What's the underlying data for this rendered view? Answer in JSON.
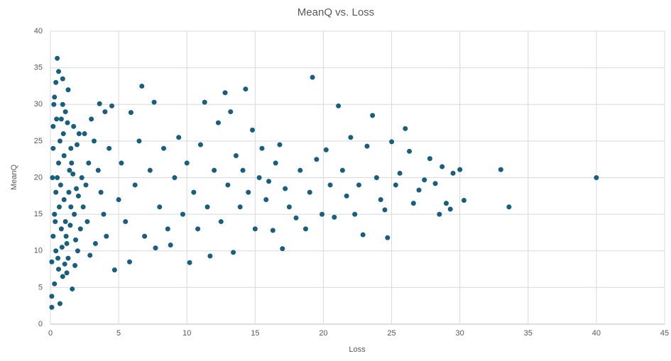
{
  "chart_data": {
    "type": "scatter",
    "title": "MeanQ vs. Loss",
    "x_label": "Loss",
    "y_label": "MeanQ",
    "xlim": [
      0,
      45
    ],
    "ylim": [
      0,
      40
    ],
    "xticks": [
      0,
      5,
      10,
      15,
      20,
      25,
      30,
      35,
      40,
      45
    ],
    "yticks": [
      0,
      5,
      10,
      15,
      20,
      25,
      30,
      35,
      40
    ],
    "grid": true,
    "color": "#175e7f",
    "x": [
      0.1,
      0.2,
      0.3,
      0.4,
      0.5,
      0.6,
      0.7,
      0.8,
      0.9,
      1.0,
      1.1,
      1.2,
      1.3,
      1.4,
      1.5,
      0.2,
      0.3,
      0.4,
      0.6,
      0.5,
      0.1,
      0.1,
      0.7,
      0.3,
      0.9,
      1.6,
      1.2,
      1.8,
      2.0,
      2.2,
      2.4,
      2.6,
      2.8,
      2.5,
      3.0,
      3.2,
      3.5,
      3.7,
      3.9,
      4.1,
      4.3,
      4.5,
      4.0,
      3.6,
      3.3,
      2.9,
      0.4,
      0.8,
      1.0,
      1.7,
      1.9,
      1.3,
      0.9,
      1.1,
      2.1,
      2.3,
      2.7,
      1.5,
      0.6,
      0.2,
      0.15,
      0.35,
      0.55,
      0.75,
      0.95,
      1.15,
      1.35,
      1.55,
      1.75,
      1.95,
      0.45,
      0.25,
      0.65,
      0.85,
      1.05,
      1.25,
      1.45,
      1.65,
      1.85,
      2.05,
      4.7,
      5.0,
      5.2,
      5.5,
      5.8,
      5.9,
      6.2,
      6.5,
      6.7,
      6.9,
      7.3,
      7.6,
      7.7,
      8.0,
      8.3,
      8.6,
      8.8,
      9.1,
      9.4,
      9.7,
      10.0,
      10.2,
      10.5,
      10.8,
      11.0,
      11.3,
      11.5,
      11.7,
      12.0,
      12.3,
      12.5,
      12.8,
      13.0,
      13.2,
      13.4,
      13.6,
      13.9,
      14.1,
      14.3,
      14.5,
      14.8,
      15.0,
      15.3,
      15.5,
      15.8,
      16.0,
      16.3,
      16.5,
      16.8,
      17.0,
      17.2,
      17.5,
      18.0,
      18.3,
      18.7,
      19.0,
      19.2,
      19.5,
      19.9,
      20.2,
      20.5,
      20.8,
      21.1,
      21.4,
      21.7,
      22.0,
      22.3,
      22.6,
      22.9,
      23.2,
      23.6,
      23.9,
      24.2,
      24.5,
      24.7,
      25.0,
      25.3,
      25.6,
      26.0,
      26.3,
      26.6,
      27.0,
      27.4,
      27.8,
      28.2,
      28.5,
      28.7,
      29.0,
      29.3,
      29.5,
      30.0,
      30.3,
      33.0,
      33.6,
      40.0
    ],
    "y": [
      8.5,
      12,
      15,
      18,
      20,
      22,
      25,
      28,
      30,
      17,
      14,
      11,
      9,
      21,
      24,
      27,
      31,
      33,
      34.5,
      36.3,
      3.8,
      2.3,
      2.8,
      5.5,
      6.5,
      4.8,
      7,
      8,
      10,
      13,
      16,
      19,
      22,
      26,
      28,
      25,
      21,
      18,
      15,
      12,
      24,
      29.8,
      29,
      30.1,
      11,
      9.4,
      10,
      13,
      23,
      27,
      18.5,
      32,
      33.5,
      29,
      26,
      20,
      14,
      16,
      7.5,
      24,
      20,
      14,
      9,
      19,
      26,
      12,
      18,
      22,
      15,
      24.5,
      28,
      30,
      16,
      10.5,
      8.2,
      27.5,
      13.5,
      20.5,
      11.5,
      17.5,
      7.4,
      17,
      22,
      14,
      8.5,
      28.9,
      19,
      25,
      32.5,
      12,
      21,
      30.3,
      10.4,
      16,
      24,
      13,
      10.8,
      20,
      25.5,
      15,
      22,
      8.4,
      18,
      13,
      24.5,
      30.3,
      16,
      9.3,
      21,
      27.5,
      14,
      31.6,
      19,
      29,
      9.8,
      23,
      16,
      21,
      32.1,
      18,
      26.5,
      13,
      20,
      24,
      17,
      19.5,
      12.8,
      22,
      24.5,
      10.3,
      18.5,
      16,
      14.5,
      21,
      13,
      18,
      33.7,
      22.5,
      15,
      23.8,
      19,
      14.6,
      29.8,
      21,
      17.5,
      25.5,
      15,
      19,
      12.2,
      24.3,
      28.5,
      20,
      17,
      15.6,
      11.8,
      24.9,
      19,
      20.6,
      26.7,
      23.6,
      16.5,
      18.3,
      19.7,
      22.6,
      19.2,
      15,
      21.5,
      16.5,
      15.7,
      20.6,
      21.1,
      16.9,
      21.1,
      16.0,
      20.0
    ]
  }
}
